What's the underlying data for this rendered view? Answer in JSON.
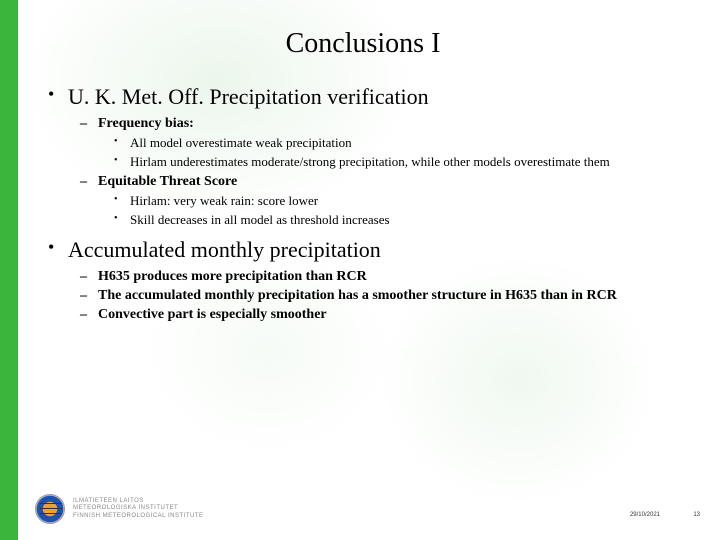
{
  "colors": {
    "green_bar": "#3cb53c",
    "background": "#ffffff",
    "text": "#000000",
    "footer_text": "#888888"
  },
  "title": "Conclusions I",
  "bullets": [
    {
      "text": "U. K. Met. Off. Precipitation verification",
      "sub": [
        {
          "text": "Frequency bias:",
          "sub": [
            {
              "text": "All model overestimate weak precipitation"
            },
            {
              "text": "Hirlam underestimates moderate/strong precipitation, while other models overestimate them"
            }
          ]
        },
        {
          "text": "Equitable Threat Score",
          "sub": [
            {
              "text": "Hirlam: very weak rain: score lower"
            },
            {
              "text": "Skill decreases in all model as threshold increases"
            }
          ]
        }
      ]
    },
    {
      "text": "Accumulated monthly precipitation",
      "sub": [
        {
          "text": "H635 produces more precipitation than RCR"
        },
        {
          "text": "The accumulated monthly precipitation has a smoother structure in H635 than in RCR"
        },
        {
          "text": "Convective part is especially smoother"
        }
      ]
    }
  ],
  "footer": {
    "org_line1": "ILMATIETEEN LAITOS",
    "org_line2": "METEOROLOGISKA INSTITUTET",
    "org_line3": "FINNISH METEOROLOGICAL INSTITUTE",
    "date": "29/10/2021",
    "slide_number": "13"
  }
}
